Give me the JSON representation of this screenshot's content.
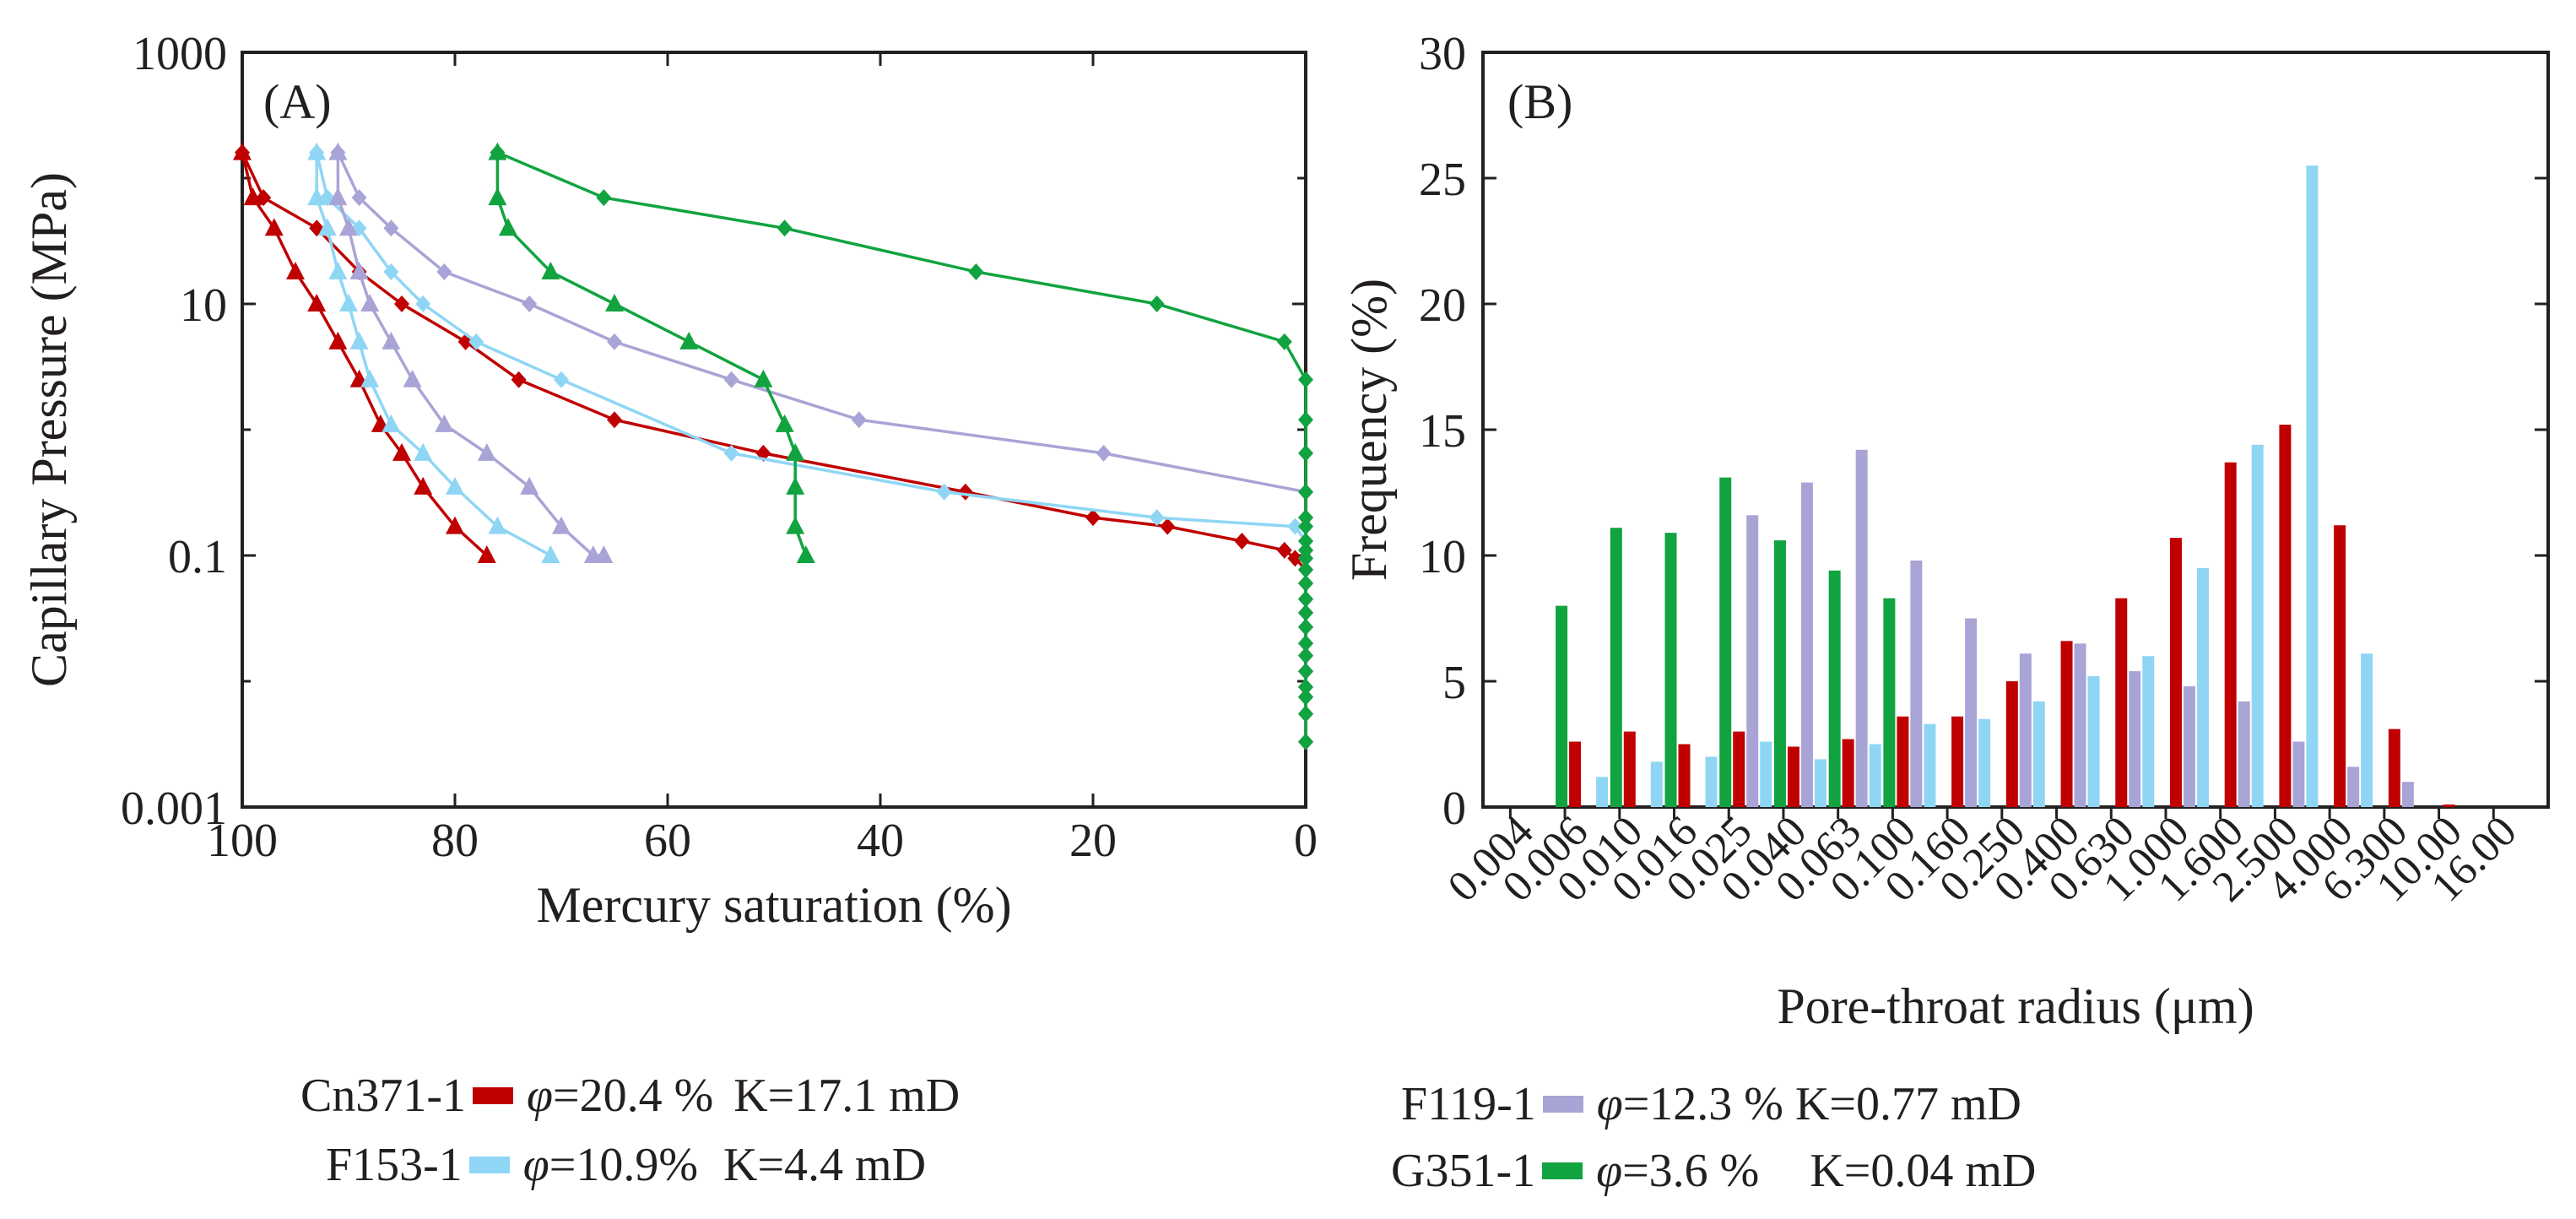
{
  "colors": {
    "cn371": "#c00000",
    "f153": "#8fd6f5",
    "f119": "#a9a4d6",
    "g351": "#11a33f",
    "axis": "#231f20"
  },
  "legend": [
    {
      "sample": "Cn371-1",
      "phi_symbol": "φ",
      "phi_value": "=20.4 %",
      "perm": "K=17.1 mD",
      "color": "#c00000"
    },
    {
      "sample": "F153-1",
      "phi_symbol": "φ",
      "phi_value": "=10.9%",
      "perm": "K=4.4 mD",
      "color": "#8fd6f5"
    },
    {
      "sample": "F119-1",
      "phi_symbol": "φ",
      "phi_value": "=12.3 %",
      "perm": "K=0.77 mD",
      "color": "#a9a4d6"
    },
    {
      "sample": "G351-1",
      "phi_symbol": "φ",
      "phi_value": "=3.6 %",
      "perm": "K=0.04 mD",
      "color": "#11a33f"
    }
  ],
  "chart_data": [
    {
      "type": "line",
      "panel_label": "(A)",
      "xlabel": "Mercury saturation (%)",
      "ylabel": "Capillary Pressure (MPa)",
      "xlim": [
        100,
        0
      ],
      "ylim": [
        0.001,
        1000
      ],
      "yscale": "log",
      "xticks": [
        "100",
        "80",
        "60",
        "40",
        "20",
        "0"
      ],
      "yticks": [
        "1000",
        "10",
        "0.1",
        "0.001"
      ],
      "series": [
        {
          "name": "Cn371-1 intrusion",
          "color": "#c00000",
          "marker": "diamond",
          "points": [
            [
              0,
              0.0033
            ],
            [
              0,
              0.0055
            ],
            [
              0,
              0.0075
            ],
            [
              0,
              0.009
            ],
            [
              0,
              0.012
            ],
            [
              0,
              0.016
            ],
            [
              0,
              0.02
            ],
            [
              0,
              0.027
            ],
            [
              0,
              0.035
            ],
            [
              0,
              0.045
            ],
            [
              0,
              0.06
            ],
            [
              0,
              0.077
            ],
            [
              1,
              0.095
            ],
            [
              2,
              0.11
            ],
            [
              6,
              0.13
            ],
            [
              13,
              0.17
            ],
            [
              20,
              0.2
            ],
            [
              32,
              0.32
            ],
            [
              51,
              0.65
            ],
            [
              65,
              1.2
            ],
            [
              74,
              2.5
            ],
            [
              79,
              5
            ],
            [
              85,
              10
            ],
            [
              89,
              18
            ],
            [
              93,
              40
            ],
            [
              98,
              70
            ],
            [
              100,
              160
            ]
          ]
        },
        {
          "name": "Cn371-1 extrusion",
          "color": "#c00000",
          "marker": "triangle",
          "points": [
            [
              100,
              160
            ],
            [
              99,
              70
            ],
            [
              97,
              40
            ],
            [
              95,
              18
            ],
            [
              93,
              10
            ],
            [
              91,
              5
            ],
            [
              89,
              2.5
            ],
            [
              87,
              1.1
            ],
            [
              85,
              0.65
            ],
            [
              83,
              0.35
            ],
            [
              80,
              0.17
            ],
            [
              77,
              0.1
            ]
          ]
        },
        {
          "name": "F153-1 intrusion",
          "color": "#8fd6f5",
          "marker": "diamond",
          "points": [
            [
              0,
              0.0033
            ],
            [
              0,
              0.0055
            ],
            [
              0,
              0.0075
            ],
            [
              0,
              0.009
            ],
            [
              0,
              0.012
            ],
            [
              0,
              0.016
            ],
            [
              0,
              0.02
            ],
            [
              0,
              0.027
            ],
            [
              0,
              0.035
            ],
            [
              0,
              0.045
            ],
            [
              0,
              0.06
            ],
            [
              0,
              0.077
            ],
            [
              0,
              0.095
            ],
            [
              0,
              0.11
            ],
            [
              0,
              0.13
            ],
            [
              1,
              0.17
            ],
            [
              14,
              0.2
            ],
            [
              34,
              0.32
            ],
            [
              54,
              0.65
            ],
            [
              70,
              2.5
            ],
            [
              78,
              5
            ],
            [
              83,
              10
            ],
            [
              86,
              18
            ],
            [
              89,
              40
            ],
            [
              92,
              70
            ],
            [
              93,
              160
            ]
          ]
        },
        {
          "name": "F153-1 extrusion",
          "color": "#8fd6f5",
          "marker": "triangle",
          "points": [
            [
              93,
              160
            ],
            [
              93,
              70
            ],
            [
              92,
              40
            ],
            [
              91,
              18
            ],
            [
              90,
              10
            ],
            [
              89,
              5
            ],
            [
              88,
              2.5
            ],
            [
              86,
              1.1
            ],
            [
              83,
              0.65
            ],
            [
              80,
              0.35
            ],
            [
              76,
              0.17
            ],
            [
              71,
              0.1
            ]
          ]
        },
        {
          "name": "F119-1 intrusion",
          "color": "#a9a4d6",
          "marker": "diamond",
          "points": [
            [
              0,
              0.0033
            ],
            [
              0,
              0.0055
            ],
            [
              0,
              0.0075
            ],
            [
              0,
              0.009
            ],
            [
              0,
              0.012
            ],
            [
              0,
              0.016
            ],
            [
              0,
              0.02
            ],
            [
              0,
              0.027
            ],
            [
              0,
              0.035
            ],
            [
              0,
              0.045
            ],
            [
              0,
              0.06
            ],
            [
              0,
              0.077
            ],
            [
              0,
              0.095
            ],
            [
              0,
              0.11
            ],
            [
              0,
              0.13
            ],
            [
              0,
              0.17
            ],
            [
              0,
              0.2
            ],
            [
              0,
              0.32
            ],
            [
              19,
              0.65
            ],
            [
              42,
              1.2
            ],
            [
              54,
              2.5
            ],
            [
              65,
              5
            ],
            [
              73,
              10
            ],
            [
              81,
              18
            ],
            [
              86,
              40
            ],
            [
              89,
              70
            ],
            [
              91,
              160
            ]
          ]
        },
        {
          "name": "F119-1 extrusion",
          "color": "#a9a4d6",
          "marker": "triangle",
          "points": [
            [
              91,
              160
            ],
            [
              91,
              70
            ],
            [
              90,
              40
            ],
            [
              89,
              18
            ],
            [
              88,
              10
            ],
            [
              86,
              5
            ],
            [
              84,
              2.5
            ],
            [
              81,
              1.1
            ],
            [
              77,
              0.65
            ],
            [
              73,
              0.35
            ],
            [
              70,
              0.17
            ],
            [
              67,
              0.1
            ],
            [
              66,
              0.1
            ]
          ]
        },
        {
          "name": "G351-1 intrusion",
          "color": "#11a33f",
          "marker": "diamond",
          "points": [
            [
              0,
              0.0033
            ],
            [
              0,
              0.0055
            ],
            [
              0,
              0.0075
            ],
            [
              0,
              0.009
            ],
            [
              0,
              0.012
            ],
            [
              0,
              0.016
            ],
            [
              0,
              0.02
            ],
            [
              0,
              0.027
            ],
            [
              0,
              0.035
            ],
            [
              0,
              0.045
            ],
            [
              0,
              0.06
            ],
            [
              0,
              0.077
            ],
            [
              0,
              0.095
            ],
            [
              0,
              0.11
            ],
            [
              0,
              0.13
            ],
            [
              0,
              0.17
            ],
            [
              0,
              0.2
            ],
            [
              0,
              0.32
            ],
            [
              0,
              0.65
            ],
            [
              0,
              1.2
            ],
            [
              0,
              2.5
            ],
            [
              2,
              5
            ],
            [
              14,
              10
            ],
            [
              31,
              18
            ],
            [
              49,
              40
            ],
            [
              66,
              70
            ],
            [
              76,
              160
            ]
          ]
        },
        {
          "name": "G351-1 extrusion",
          "color": "#11a33f",
          "marker": "triangle",
          "points": [
            [
              76,
              160
            ],
            [
              76,
              70
            ],
            [
              75,
              40
            ],
            [
              71,
              18
            ],
            [
              65,
              10
            ],
            [
              58,
              5
            ],
            [
              51,
              2.5
            ],
            [
              49,
              1.1
            ],
            [
              48,
              0.65
            ],
            [
              48,
              0.35
            ],
            [
              48,
              0.17
            ],
            [
              47,
              0.1
            ]
          ]
        }
      ]
    },
    {
      "type": "bar",
      "panel_label": "(B)",
      "xlabel": "Pore-throat radius (μm)",
      "ylabel": "Frequency (%)",
      "ylim": [
        0,
        30
      ],
      "yticks": [
        "0",
        "5",
        "10",
        "15",
        "20",
        "25",
        "30"
      ],
      "categories": [
        "0.004",
        "0.006",
        "0.010",
        "0.016",
        "0.025",
        "0.040",
        "0.063",
        "0.100",
        "0.160",
        "0.250",
        "0.400",
        "0.630",
        "1.000",
        "1.600",
        "2.500",
        "4.000",
        "6.300",
        "10.00",
        "16.00"
      ],
      "series": [
        {
          "name": "G351-1",
          "color": "#11a33f",
          "values": [
            0,
            8.0,
            11.1,
            10.9,
            13.1,
            10.6,
            9.4,
            8.3,
            0,
            0,
            0,
            0,
            0,
            0,
            0,
            0,
            0,
            0,
            0
          ]
        },
        {
          "name": "Cn371-1",
          "color": "#c00000",
          "values": [
            0,
            2.6,
            3.0,
            2.5,
            3.0,
            2.4,
            2.7,
            3.6,
            3.6,
            5.0,
            6.6,
            8.3,
            10.7,
            13.7,
            15.2,
            11.2,
            3.1,
            0.1,
            0
          ]
        },
        {
          "name": "F119-1",
          "color": "#a9a4d6",
          "values": [
            0,
            0,
            0,
            0,
            11.6,
            12.9,
            14.2,
            9.8,
            7.5,
            6.1,
            6.5,
            5.4,
            4.8,
            4.2,
            2.6,
            1.6,
            1.0,
            0,
            0
          ]
        },
        {
          "name": "F153-1",
          "color": "#8fd6f5",
          "values": [
            0,
            1.2,
            1.8,
            2.0,
            2.6,
            1.9,
            2.5,
            3.3,
            3.5,
            4.2,
            5.2,
            6.0,
            9.5,
            14.4,
            25.5,
            6.1,
            0,
            0,
            0
          ]
        }
      ]
    }
  ]
}
